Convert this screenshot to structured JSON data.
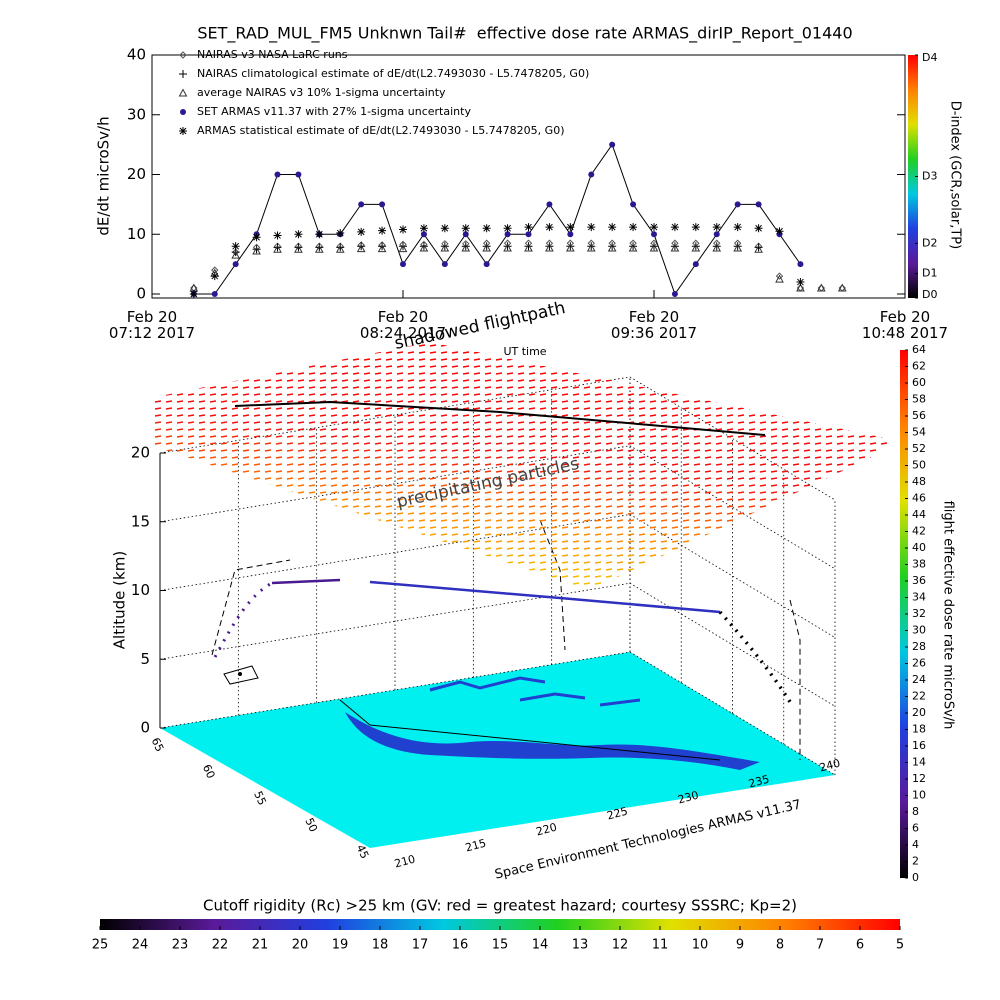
{
  "chart_data": [
    {
      "type": "line",
      "title": "SET_RAD_MUL_FM5 Unknwn Tail#  effective dose rate ARMAS_dirIP_Report_01440",
      "ylabel": "dE/dt microSv/h",
      "xlabel": "UT time",
      "x": [
        "07:24",
        "07:30",
        "07:36",
        "07:42",
        "07:48",
        "07:54",
        "08:00",
        "08:06",
        "08:12",
        "08:18",
        "08:24",
        "08:30",
        "08:36",
        "08:42",
        "08:48",
        "08:54",
        "09:00",
        "09:06",
        "09:12",
        "09:18",
        "09:24",
        "09:30",
        "09:36",
        "09:42",
        "09:48",
        "09:54",
        "10:00",
        "10:06",
        "10:12",
        "10:18",
        "10:24",
        "10:30"
      ],
      "xlim": [
        "07:12",
        "10:48"
      ],
      "xticks": [
        {
          "value": "07:12",
          "label": "Feb 20\n07:12 2017"
        },
        {
          "value": "08:24",
          "label": "Feb 20\n08:24 2017"
        },
        {
          "value": "09:36",
          "label": "Feb 20\n09:36 2017"
        },
        {
          "value": "10:48",
          "label": "Feb 20\n10:48 2017"
        }
      ],
      "ylim": [
        0,
        40
      ],
      "yticks": [
        0,
        10,
        20,
        30,
        40
      ],
      "series": [
        {
          "name": "NAIRAS v3 NASA LaRC runs",
          "marker": "diamond",
          "color": "#555555",
          "values": [
            1,
            4,
            7,
            7.8,
            8,
            8,
            8,
            8,
            8.2,
            8.2,
            8.3,
            8.3,
            8.4,
            8.4,
            8.5,
            8.5,
            8.5,
            8.5,
            8.5,
            8.5,
            8.5,
            8.5,
            8.5,
            8.5,
            8.5,
            8.5,
            8.5,
            8,
            3,
            1,
            1,
            1
          ]
        },
        {
          "name": "NAIRAS climatological estimate of dE/dt(L2.7493030 - L5.7478205, G0)",
          "marker": "plus",
          "color": "#000000",
          "values": [
            null,
            null,
            7,
            7.5,
            7.8,
            7.8,
            7.8,
            7.8,
            8,
            8,
            8,
            8,
            8,
            8,
            8,
            8,
            8,
            8,
            8,
            8,
            8,
            8,
            8,
            8,
            8,
            8,
            8,
            7.8,
            null,
            null,
            null,
            null
          ]
        },
        {
          "name": "average NAIRAS v3 10% 1-sigma uncertainty",
          "marker": "triangle",
          "color": "#333333",
          "values": [
            1,
            3.5,
            6.5,
            7.2,
            7.5,
            7.5,
            7.5,
            7.5,
            7.6,
            7.6,
            7.6,
            7.7,
            7.7,
            7.7,
            7.7,
            7.7,
            7.7,
            7.7,
            7.7,
            7.7,
            7.7,
            7.7,
            7.7,
            7.7,
            7.7,
            7.7,
            7.7,
            7.5,
            2.5,
            1,
            1,
            1
          ]
        },
        {
          "name": "SET ARMAS v11.37 with 27% 1-sigma uncertainty",
          "marker": "dot",
          "color": "#2a1a90",
          "line_color": "#000000",
          "values": [
            0,
            0,
            5,
            10,
            20,
            20,
            10,
            10,
            15,
            15,
            5,
            10,
            5,
            10,
            5,
            10,
            10,
            15,
            10,
            20,
            25,
            15,
            10,
            0,
            5,
            10,
            15,
            15,
            10,
            5,
            null,
            null
          ]
        },
        {
          "name": "ARMAS statistical estimate of dE/dt(L2.7493030 - L5.7478205, G0)",
          "marker": "asterisk",
          "color": "#000000",
          "values": [
            0,
            3,
            8,
            9.5,
            9.8,
            10,
            10,
            10.2,
            10.4,
            10.6,
            10.8,
            11,
            11,
            11,
            11,
            11,
            11.2,
            11.2,
            11.2,
            11.2,
            11.2,
            11.2,
            11.2,
            11.2,
            11.2,
            11.2,
            11.2,
            11,
            10.5,
            2,
            null,
            null
          ]
        }
      ],
      "colorbar": {
        "label": "D-index (GCR,solar,TP)",
        "lim": [
          0,
          40
        ],
        "ticks": [
          {
            "value": 0,
            "label": "D0"
          },
          {
            "value": 4,
            "label": "D1"
          },
          {
            "value": 9,
            "label": "D2"
          },
          {
            "value": 20,
            "label": "D3"
          },
          {
            "value": 40,
            "label": "D4"
          }
        ],
        "colors": [
          "#000000",
          "#5a1a9a",
          "#2040e0",
          "#00c8e0",
          "#20d020",
          "#e0e000",
          "#ff8000",
          "#ff0000"
        ]
      }
    },
    {
      "type": "flight3d",
      "annotations": [
        "shadowed flightpath",
        "precipitating particles"
      ],
      "zlabel": "Altitude (km)",
      "zlim": [
        0,
        20
      ],
      "zticks": [
        0,
        5,
        10,
        15,
        20
      ],
      "latlim": [
        65,
        45
      ],
      "latticks": [
        65,
        60,
        55,
        50,
        45
      ],
      "lonlim": [
        210,
        240
      ],
      "lonticks": [
        210,
        215,
        220,
        225,
        230,
        235,
        240
      ],
      "credit": "Space Environment Technologies ARMAS v11.37",
      "colorbar": {
        "label": "flight effective dose rate microSv/h",
        "lim": [
          0,
          64
        ],
        "ticks": [
          0,
          2,
          4,
          6,
          8,
          10,
          12,
          14,
          16,
          18,
          20,
          22,
          24,
          26,
          28,
          30,
          32,
          34,
          36,
          38,
          40,
          42,
          44,
          46,
          48,
          50,
          52,
          54,
          56,
          58,
          60,
          62,
          64
        ],
        "colors": [
          "#000000",
          "#5a1a9a",
          "#2040e0",
          "#00c8e0",
          "#20d020",
          "#e0e000",
          "#ff8000",
          "#ff0000"
        ]
      }
    },
    {
      "type": "colorbar",
      "label": "Cutoff rigidity (Rc) >25 km (GV: red = greatest hazard; courtesy SSSRC; Kp=2)",
      "lim": [
        25,
        5
      ],
      "ticks": [
        25,
        24,
        23,
        22,
        21,
        20,
        19,
        18,
        17,
        16,
        15,
        14,
        13,
        12,
        11,
        10,
        9,
        8,
        7,
        6,
        5
      ],
      "colors": [
        "#000000",
        "#5a1a9a",
        "#2040e0",
        "#00c8e0",
        "#20d020",
        "#e0e000",
        "#ff8000",
        "#ff0000"
      ]
    }
  ]
}
